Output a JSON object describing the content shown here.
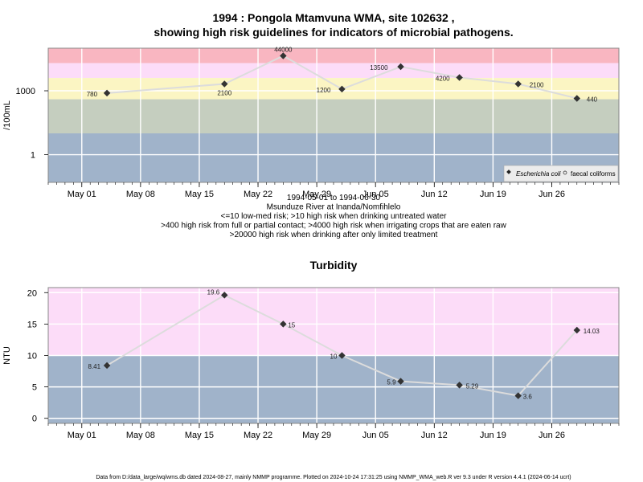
{
  "colors": {
    "red": "#f9b6c1",
    "pink": "#fcdcf8",
    "yellow": "#fbf5c3",
    "green": "#c5cebf",
    "blue": "#a0b3ca",
    "line": "#dcdcdc",
    "point": "#333333"
  },
  "chart_data": [
    {
      "type": "line",
      "title": "1994 : Pongola Mtamvuna WMA, site 102632 ,",
      "subtitle": "showing high risk guidelines for indicators of microbial pathogens.",
      "ylabel": "/100mL",
      "yscale": "log",
      "y_ticks": [
        {
          "value": 1,
          "label": "1"
        },
        {
          "value": 1000,
          "label": "1000"
        }
      ],
      "x_range": [
        "1994-04-27",
        "1994-07-04"
      ],
      "x_ticks": [
        "May 01",
        "May 08",
        "May 15",
        "May 22",
        "May 29",
        "Jun 05",
        "Jun 12",
        "Jun 19",
        "Jun 26"
      ],
      "bands": [
        {
          "from": 20000,
          "to": 100000,
          "color": "red"
        },
        {
          "from": 4000,
          "to": 20000,
          "color": "pink"
        },
        {
          "from": 400,
          "to": 4000,
          "color": "yellow"
        },
        {
          "from": 10,
          "to": 400,
          "color": "green"
        },
        {
          "from": 0.05,
          "to": 10,
          "color": "blue"
        }
      ],
      "series": [
        {
          "name": "Escherichia coli",
          "x": [
            "1994-05-04",
            "1994-05-18",
            "1994-05-25",
            "1994-06-01",
            "1994-06-08",
            "1994-06-15",
            "1994-06-22",
            "1994-06-29"
          ],
          "values": [
            780,
            2100,
            44000,
            1200,
            13500,
            4200,
            2100,
            440
          ]
        }
      ],
      "legend": {
        "position": "bottom-right",
        "items": [
          "Escherichia coli",
          "faecal coliforms"
        ]
      },
      "caption": [
        "1994-05-01 to 1994-06-30",
        "Msunduze River at Inanda/Nomfihlelo",
        "<=10 low-med risk; >10 high risk when drinking untreated water",
        ">400 high risk from full or partial contact; >4000 high risk when irrigating crops that are eaten raw",
        ">20000 high risk when drinking after only limited treatment"
      ]
    },
    {
      "type": "line",
      "title": "Turbidity",
      "ylabel": "NTU",
      "ylim": [
        -0.8,
        20.8
      ],
      "y_ticks": [
        0,
        5,
        10,
        15,
        20
      ],
      "x_range": [
        "1994-04-27",
        "1994-07-04"
      ],
      "x_ticks": [
        "May 01",
        "May 08",
        "May 15",
        "May 22",
        "May 29",
        "Jun 05",
        "Jun 12",
        "Jun 19",
        "Jun 26"
      ],
      "bands": [
        {
          "from": 10,
          "to": 20.8,
          "color": "pink"
        },
        {
          "from": -0.8,
          "to": 10,
          "color": "blue"
        }
      ],
      "series": [
        {
          "name": "",
          "x": [
            "1994-05-04",
            "1994-05-18",
            "1994-05-25",
            "1994-06-01",
            "1994-06-08",
            "1994-06-15",
            "1994-06-22",
            "1994-06-29"
          ],
          "values": [
            8.41,
            19.6,
            15,
            10,
            5.9,
            5.29,
            3.6,
            14.03
          ],
          "labels": [
            "8.41",
            "19.6",
            "15",
            "10",
            "5.9",
            "5.29",
            "3.6",
            "14.03"
          ]
        }
      ]
    }
  ],
  "footer": "Data from D:/data_large/wq/wms.db dated 2024-08-27, mainly NMMP programme. Plotted on 2024-10-24 17:31:25 using NMMP_WMA_web.R ver 9.3 under R version 4.4.1 (2024-06-14 ucrt)"
}
